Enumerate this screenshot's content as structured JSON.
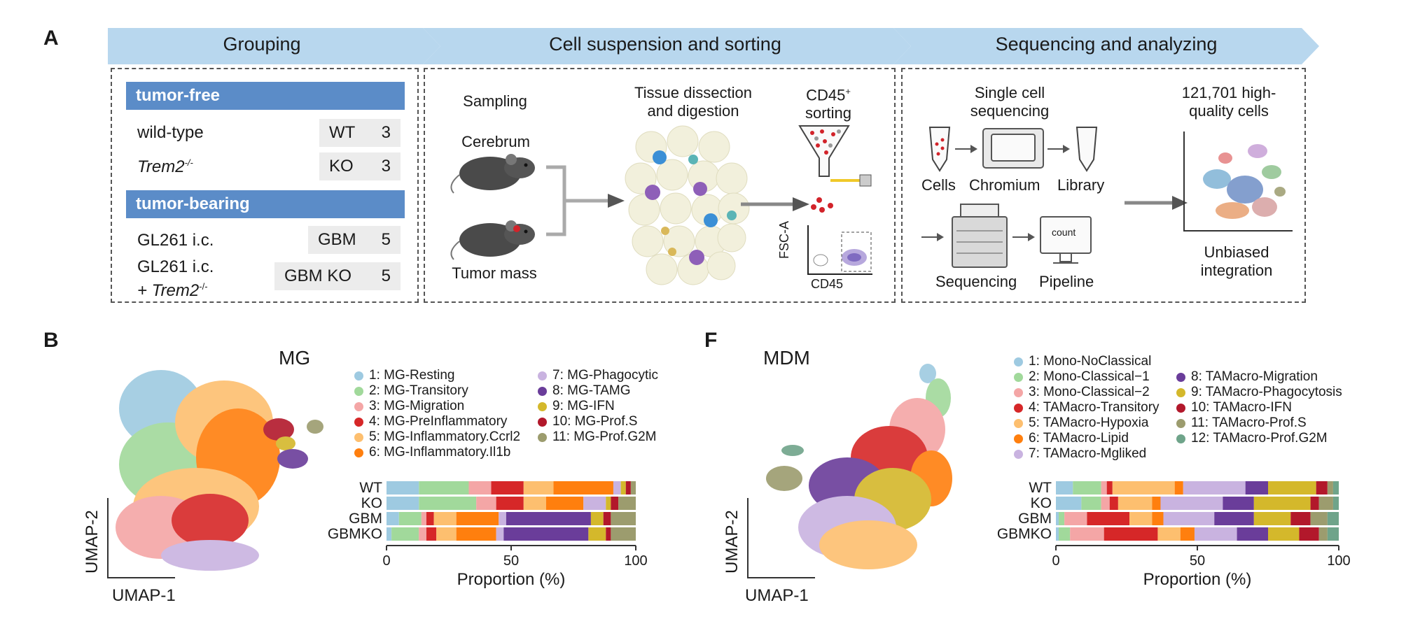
{
  "panel_a": {
    "letter": "A",
    "stages": [
      "Grouping",
      "Cell suspension and sorting",
      "Sequencing and analyzing"
    ],
    "grouping": {
      "tumor_free_header": "tumor-free",
      "tumor_bearing_header": "tumor-bearing",
      "rows": [
        {
          "label": "wild-type",
          "group": "WT",
          "n": "3"
        },
        {
          "label": "Trem2",
          "sup": "-/-",
          "group": "KO",
          "n": "3"
        },
        {
          "label": "GL261 i.c.",
          "group": "GBM",
          "n": "5"
        },
        {
          "label": "GL261 i.c.",
          "label2": "+ Trem2",
          "sup": "-/-",
          "group": "GBM KO",
          "n": "5"
        }
      ]
    },
    "sorting": {
      "sampling": "Sampling",
      "cerebrum": "Cerebrum",
      "tumor_mass": "Tumor mass",
      "dissection": "Tissue dissection\nand digestion",
      "cd45_title": "CD45",
      "cd45_sup": "+",
      "sorting_word": "sorting",
      "fsc_label": "FSC-A",
      "cd45_axis": "CD45"
    },
    "sequencing": {
      "single_cell": "Single cell\nsequencing",
      "cells": "Cells",
      "chromium": "Chromium",
      "library": "Library",
      "sequencing": "Sequencing",
      "pipeline": "Pipeline",
      "count": "count",
      "high_quality": "121,701 high-\nquality cells",
      "unbiased": "Unbiased\nintegration"
    }
  },
  "panel_b": {
    "letter": "B",
    "title": "MG",
    "umap_x": "UMAP-1",
    "umap_y": "UMAP-2",
    "xlabel": "Proportion (%)",
    "ticks": [
      "0",
      "50",
      "100"
    ]
  },
  "panel_f": {
    "letter": "F",
    "title": "MDM",
    "umap_x": "UMAP-1",
    "umap_y": "UMAP-2",
    "xlabel": "Proportion (%)",
    "ticks": [
      "0",
      "50",
      "100"
    ]
  },
  "chart_data": [
    {
      "type": "bar",
      "orientation": "horizontal-stacked",
      "title": "MG",
      "xlabel": "Proportion (%)",
      "xlim": [
        0,
        100
      ],
      "categories": [
        "WT",
        "KO",
        "GBM",
        "GBMKO"
      ],
      "series": [
        {
          "name": "1: MG-Resting",
          "color": "#9ecae1",
          "values": [
            13,
            13,
            5,
            2
          ]
        },
        {
          "name": "2: MG-Transitory",
          "color": "#a1d99b",
          "values": [
            20,
            23,
            9,
            11
          ]
        },
        {
          "name": "3: MG-Migration",
          "color": "#f4a6a6",
          "values": [
            9,
            8,
            2,
            3
          ]
        },
        {
          "name": "4: MG-PreInflammatory",
          "color": "#d62728",
          "values": [
            13,
            11,
            3,
            4
          ]
        },
        {
          "name": "5: MG-Inflammatory.Ccrl2",
          "color": "#fdbf6f",
          "values": [
            12,
            9,
            9,
            8
          ]
        },
        {
          "name": "6: MG-Inflammatory.Il1b",
          "color": "#ff7f0e",
          "values": [
            24,
            15,
            17,
            16
          ]
        },
        {
          "name": "7: MG-Phagocytic",
          "color": "#c9b3e0",
          "values": [
            3,
            9,
            3,
            3
          ]
        },
        {
          "name": "8: MG-TAMG",
          "color": "#6a3d9a",
          "values": [
            0,
            0,
            34,
            34
          ]
        },
        {
          "name": "9: MG-IFN",
          "color": "#d4b82b",
          "values": [
            2,
            2,
            5,
            7
          ]
        },
        {
          "name": "10: MG-Prof.S",
          "color": "#b2182b",
          "values": [
            2,
            3,
            3,
            2
          ]
        },
        {
          "name": "11: MG-Prof.G2M",
          "color": "#9c9c6e",
          "values": [
            2,
            7,
            10,
            10
          ]
        }
      ]
    },
    {
      "type": "bar",
      "orientation": "horizontal-stacked",
      "title": "MDM",
      "xlabel": "Proportion (%)",
      "xlim": [
        0,
        100
      ],
      "categories": [
        "WT",
        "KO",
        "GBM",
        "GBMKO"
      ],
      "series": [
        {
          "name": "1: Mono-NoClassical",
          "color": "#9ecae1",
          "values": [
            6,
            9,
            1,
            1
          ]
        },
        {
          "name": "2: Mono-Classical−1",
          "color": "#a1d99b",
          "values": [
            10,
            7,
            2,
            4
          ]
        },
        {
          "name": "3: Mono-Classical−2",
          "color": "#f4a6a6",
          "values": [
            2,
            3,
            8,
            12
          ]
        },
        {
          "name": "4: TAMacro-Transitory",
          "color": "#d62728",
          "values": [
            2,
            3,
            15,
            19
          ]
        },
        {
          "name": "5: TAMacro-Hypoxia",
          "color": "#fdbf6f",
          "values": [
            22,
            12,
            8,
            8
          ]
        },
        {
          "name": "6: TAMacro-Lipid",
          "color": "#ff7f0e",
          "values": [
            3,
            3,
            4,
            5
          ]
        },
        {
          "name": "7: TAMacro-Mgliked",
          "color": "#c9b3e0",
          "values": [
            22,
            22,
            18,
            15
          ]
        },
        {
          "name": "8: TAMacro-Migration",
          "color": "#6a3d9a",
          "values": [
            8,
            11,
            14,
            11
          ]
        },
        {
          "name": "9: TAMacro-Phagocytosis",
          "color": "#d4b82b",
          "values": [
            17,
            20,
            13,
            11
          ]
        },
        {
          "name": "10: TAMacro-IFN",
          "color": "#b2182b",
          "values": [
            4,
            3,
            7,
            7
          ]
        },
        {
          "name": "11: TAMacro-Prof.S",
          "color": "#9c9c6e",
          "values": [
            2,
            5,
            6,
            3
          ]
        },
        {
          "name": "12: TAMacro-Prof.G2M",
          "color": "#6fa48a",
          "values": [
            2,
            2,
            4,
            4
          ]
        }
      ]
    }
  ]
}
